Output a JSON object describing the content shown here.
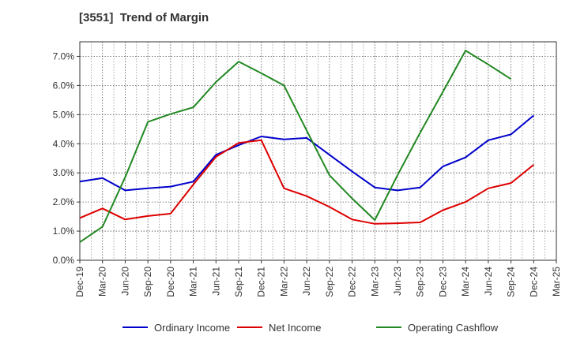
{
  "chart_data": {
    "type": "line",
    "title": "[3551]  Trend of Margin",
    "xlabel": "",
    "ylabel": "",
    "x": [
      "Dec-19",
      "Mar-20",
      "Jun-20",
      "Sep-20",
      "Dec-20",
      "Mar-21",
      "Jun-21",
      "Sep-21",
      "Dec-21",
      "Mar-22",
      "Jun-22",
      "Sep-22",
      "Dec-22",
      "Mar-23",
      "Jun-23",
      "Sep-23",
      "Dec-23",
      "Mar-24",
      "Jun-24",
      "Sep-24",
      "Dec-24",
      "Mar-25"
    ],
    "ylim": [
      0,
      7.5
    ],
    "yticks": [
      0,
      1,
      2,
      3,
      4,
      5,
      6,
      7
    ],
    "ytick_labels": [
      "0.0%",
      "1.0%",
      "2.0%",
      "3.0%",
      "4.0%",
      "5.0%",
      "6.0%",
      "7.0%"
    ],
    "grid": true,
    "legend_position": "bottom",
    "series": [
      {
        "name": "Ordinary Income",
        "color": "#0000cc",
        "values": [
          2.7,
          2.82,
          2.4,
          2.47,
          2.53,
          2.7,
          3.62,
          3.95,
          4.25,
          4.15,
          4.2,
          3.62,
          3.05,
          2.5,
          2.4,
          2.5,
          3.22,
          3.53,
          4.12,
          4.32,
          4.97,
          null
        ]
      },
      {
        "name": "Net Income",
        "color": "#dd0000",
        "values": [
          1.45,
          1.78,
          1.4,
          1.52,
          1.6,
          2.6,
          3.55,
          4.03,
          4.12,
          2.47,
          2.2,
          1.83,
          1.4,
          1.25,
          1.27,
          1.3,
          1.72,
          2.0,
          2.47,
          2.65,
          3.28,
          null
        ]
      },
      {
        "name": "Operating Cashflow",
        "color": "#228822",
        "values": [
          0.62,
          1.15,
          2.85,
          4.75,
          5.02,
          5.25,
          6.12,
          6.82,
          6.42,
          6.0,
          4.45,
          2.92,
          2.12,
          1.38,
          2.92,
          4.38,
          5.78,
          7.2,
          6.72,
          6.22,
          null,
          null
        ]
      }
    ]
  }
}
